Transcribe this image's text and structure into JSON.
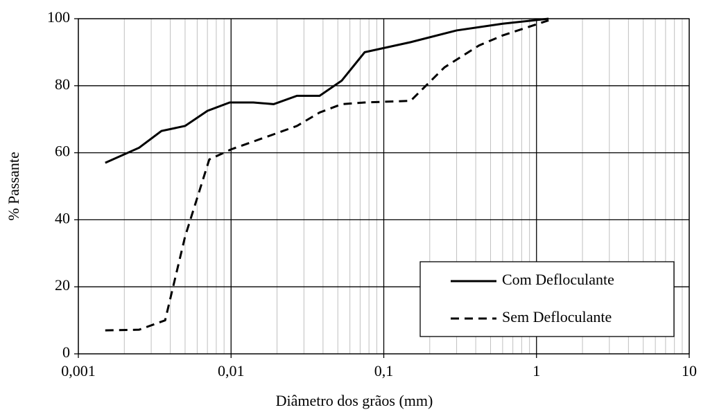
{
  "chart_data": {
    "type": "line",
    "x_label": "Diâmetro dos grãos (mm)",
    "y_label": "% Passante",
    "x_scale": "log",
    "grid": true,
    "legend_position": "lower right",
    "xlim": [
      0.001,
      10
    ],
    "ylim": [
      0,
      100
    ],
    "xticks": [
      {
        "value": 0.001,
        "label": "0,001"
      },
      {
        "value": 0.01,
        "label": "0,01"
      },
      {
        "value": 0.1,
        "label": "0,1"
      },
      1,
      10
    ],
    "yticks": [
      0,
      20,
      40,
      60,
      80,
      100
    ],
    "series": [
      {
        "name": "Com Defloculante",
        "color": "#000000",
        "dash": "solid",
        "x": [
          0.0015,
          0.0025,
          0.0035,
          0.005,
          0.007,
          0.0098,
          0.014,
          0.019,
          0.027,
          0.038,
          0.053,
          0.075,
          0.15,
          0.3,
          0.6,
          1.2
        ],
        "values": [
          57,
          61.5,
          66.5,
          68,
          72.5,
          75,
          75,
          74.5,
          77,
          77,
          81.5,
          90,
          93,
          96.5,
          98.5,
          100
        ]
      },
      {
        "name": "Sem Defloculante",
        "color": "#000000",
        "dash": "dashed",
        "x": [
          0.0015,
          0.0025,
          0.0037,
          0.005,
          0.0072,
          0.01,
          0.019,
          0.027,
          0.038,
          0.053,
          0.075,
          0.15,
          0.25,
          0.42,
          0.6,
          1.2
        ],
        "values": [
          7,
          7.2,
          10,
          35,
          58,
          61,
          65.5,
          68,
          72,
          74.5,
          75,
          75.5,
          85.5,
          92,
          95,
          99.5
        ]
      }
    ]
  }
}
